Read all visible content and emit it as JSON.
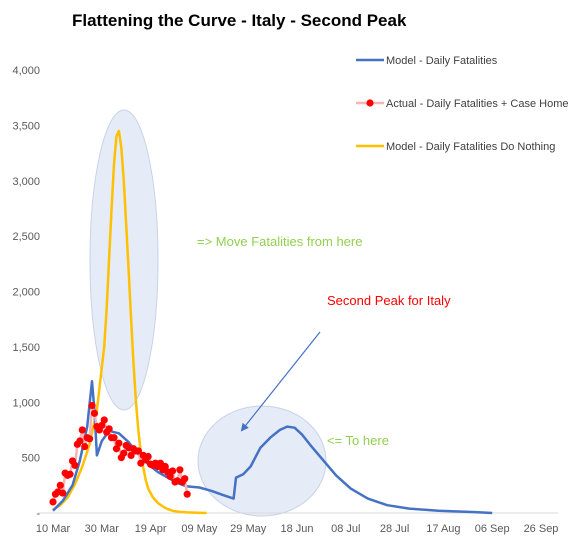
{
  "chart_data": {
    "type": "line",
    "title": "Flattening the Curve - Italy - Second Peak",
    "xlabel": "",
    "ylabel": "",
    "ylim": [
      0,
      4000
    ],
    "x_range": [
      "2020-03-10",
      "2020-09-26"
    ],
    "y_ticks": [
      "-",
      "500",
      "1,000",
      "1,500",
      "2,000",
      "2,500",
      "3,000",
      "3,500",
      "4,000"
    ],
    "y_tick_values": [
      0,
      500,
      1000,
      1500,
      2000,
      2500,
      3000,
      3500,
      4000
    ],
    "x_ticks": [
      "10 Mar",
      "30 Mar",
      "19 Apr",
      "09 May",
      "29 May",
      "18 Jun",
      "08 Jul",
      "28 Jul",
      "17 Aug",
      "06 Sep",
      "26 Sep"
    ],
    "x_tick_dates": [
      "2020-03-10",
      "2020-03-30",
      "2020-04-19",
      "2020-05-09",
      "2020-05-29",
      "2020-06-18",
      "2020-07-08",
      "2020-07-28",
      "2020-08-17",
      "2020-09-06",
      "2020-09-26"
    ],
    "grid": false,
    "legend_position": "top-right",
    "series": [
      {
        "name": "Model - Daily Fatalities",
        "color": "#4472c4",
        "style": "line",
        "x": [
          "2020-03-10",
          "2020-03-14",
          "2020-03-18",
          "2020-03-21",
          "2020-03-24",
          "2020-03-26",
          "2020-03-27",
          "2020-03-28",
          "2020-03-30",
          "2020-04-02",
          "2020-04-06",
          "2020-04-10",
          "2020-04-14",
          "2020-04-18",
          "2020-04-22",
          "2020-04-26",
          "2020-04-30",
          "2020-05-04",
          "2020-05-09",
          "2020-05-14",
          "2020-05-19",
          "2020-05-23",
          "2020-05-24",
          "2020-05-25",
          "2020-05-27",
          "2020-05-30",
          "2020-06-03",
          "2020-06-07",
          "2020-06-11",
          "2020-06-14",
          "2020-06-17",
          "2020-06-20",
          "2020-06-24",
          "2020-06-29",
          "2020-07-04",
          "2020-07-10",
          "2020-07-17",
          "2020-07-25",
          "2020-08-03",
          "2020-08-15",
          "2020-08-30",
          "2020-09-06"
        ],
        "y": [
          20,
          110,
          250,
          470,
          780,
          1190,
          920,
          520,
          650,
          740,
          720,
          640,
          530,
          440,
          370,
          320,
          270,
          240,
          230,
          200,
          160,
          130,
          320,
          330,
          350,
          420,
          590,
          680,
          750,
          780,
          770,
          710,
          600,
          470,
          340,
          220,
          130,
          70,
          40,
          20,
          8,
          0
        ]
      },
      {
        "name": "Actual - Daily Fatalities + Case Home",
        "color": "#ff0000",
        "line_color": "#f4b6b6",
        "style": "line+markers",
        "x": [
          "2020-03-10",
          "2020-03-11",
          "2020-03-12",
          "2020-03-13",
          "2020-03-14",
          "2020-03-15",
          "2020-03-16",
          "2020-03-17",
          "2020-03-18",
          "2020-03-19",
          "2020-03-20",
          "2020-03-21",
          "2020-03-22",
          "2020-03-23",
          "2020-03-24",
          "2020-03-25",
          "2020-03-26",
          "2020-03-27",
          "2020-03-28",
          "2020-03-29",
          "2020-03-30",
          "2020-03-31",
          "2020-04-01",
          "2020-04-02",
          "2020-04-03",
          "2020-04-04",
          "2020-04-05",
          "2020-04-06",
          "2020-04-07",
          "2020-04-08",
          "2020-04-09",
          "2020-04-10",
          "2020-04-11",
          "2020-04-12",
          "2020-04-13",
          "2020-04-14",
          "2020-04-15",
          "2020-04-16",
          "2020-04-17",
          "2020-04-18",
          "2020-04-19",
          "2020-04-20",
          "2020-04-21",
          "2020-04-22",
          "2020-04-23",
          "2020-04-24",
          "2020-04-25",
          "2020-04-26",
          "2020-04-27",
          "2020-04-28",
          "2020-04-29",
          "2020-04-30",
          "2020-05-01",
          "2020-05-02",
          "2020-05-03",
          "2020-05-04"
        ],
        "y": [
          100,
          170,
          190,
          250,
          180,
          360,
          340,
          350,
          470,
          430,
          620,
          650,
          750,
          600,
          680,
          670,
          970,
          900,
          780,
          750,
          790,
          840,
          730,
          760,
          680,
          680,
          580,
          630,
          500,
          540,
          610,
          590,
          520,
          580,
          560,
          560,
          450,
          520,
          480,
          510,
          440,
          430,
          450,
          420,
          450,
          390,
          420,
          370,
          330,
          380,
          280,
          290,
          390,
          280,
          310,
          170
        ]
      },
      {
        "name": "Model - Daily Fatalities Do Nothing",
        "color": "#ffc000",
        "style": "line",
        "x": [
          "2020-03-10",
          "2020-03-13",
          "2020-03-16",
          "2020-03-19",
          "2020-03-22",
          "2020-03-25",
          "2020-03-28",
          "2020-03-31",
          "2020-04-01",
          "2020-04-02",
          "2020-04-03",
          "2020-04-04",
          "2020-04-05",
          "2020-04-06",
          "2020-04-07",
          "2020-04-08",
          "2020-04-09",
          "2020-04-10",
          "2020-04-11",
          "2020-04-12",
          "2020-04-13",
          "2020-04-14",
          "2020-04-15",
          "2020-04-16",
          "2020-04-17",
          "2020-04-18",
          "2020-04-20",
          "2020-04-22",
          "2020-04-25",
          "2020-04-28",
          "2020-05-01",
          "2020-05-04",
          "2020-05-08",
          "2020-05-12"
        ],
        "y": [
          30,
          70,
          140,
          260,
          420,
          620,
          930,
          1500,
          1850,
          2300,
          2750,
          3150,
          3400,
          3450,
          3300,
          3000,
          2600,
          2200,
          1750,
          1350,
          1000,
          740,
          550,
          410,
          300,
          220,
          140,
          90,
          45,
          20,
          10,
          5,
          2,
          0
        ]
      }
    ],
    "annotations": [
      {
        "text": "=> Move Fatalities from here",
        "color": "#92d050"
      },
      {
        "text": "Second Peak for Italy",
        "color": "#ff0000"
      },
      {
        "text": "<= To here",
        "color": "#92d050"
      }
    ],
    "highlight_color": "#dae3f3",
    "arrow_color": "#4472c4"
  }
}
